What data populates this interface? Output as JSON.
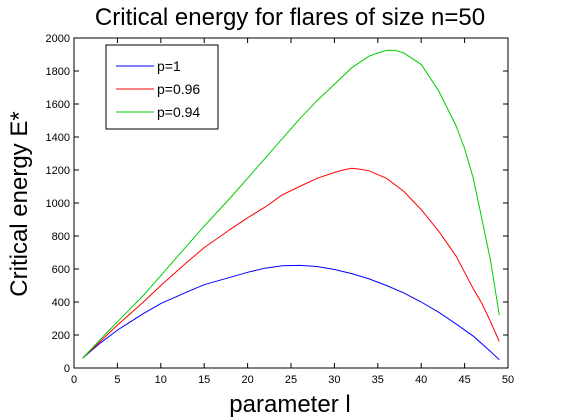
{
  "chart_data": {
    "type": "line",
    "title": "Critical energy for flares of size n=50",
    "xlabel": "parameter l",
    "ylabel": "Critical energy E*",
    "xlim": [
      0,
      50
    ],
    "ylim": [
      0,
      2000
    ],
    "xticks": [
      0,
      5,
      10,
      15,
      20,
      25,
      30,
      35,
      40,
      45,
      50
    ],
    "yticks": [
      0,
      200,
      400,
      600,
      800,
      1000,
      1200,
      1400,
      1600,
      1800,
      2000
    ],
    "grid": false,
    "legend_position": "top-left",
    "series": [
      {
        "name": "p=1",
        "color": "#0000ff",
        "x": [
          1,
          3,
          5,
          8,
          10,
          13,
          15,
          18,
          20,
          22,
          24,
          26,
          28,
          30,
          32,
          34,
          36,
          38,
          40,
          42,
          44,
          46,
          48,
          49
        ],
        "y": [
          60,
          150,
          230,
          330,
          390,
          460,
          505,
          550,
          580,
          605,
          620,
          622,
          615,
          597,
          572,
          540,
          500,
          455,
          400,
          338,
          268,
          193,
          100,
          50
        ]
      },
      {
        "name": "p=0.96",
        "color": "#ff0000",
        "x": [
          1,
          3,
          5,
          8,
          10,
          13,
          15,
          18,
          20,
          22,
          24,
          26,
          28,
          30,
          31,
          32,
          33,
          34,
          36,
          38,
          40,
          42,
          44,
          46,
          47,
          48,
          49
        ],
        "y": [
          60,
          160,
          260,
          400,
          500,
          640,
          730,
          840,
          910,
          975,
          1050,
          1100,
          1150,
          1185,
          1200,
          1210,
          1205,
          1195,
          1150,
          1070,
          960,
          830,
          680,
          480,
          390,
          280,
          160
        ]
      },
      {
        "name": "p=0.94",
        "color": "#00cc00",
        "x": [
          1,
          3,
          5,
          8,
          10,
          13,
          15,
          18,
          20,
          22,
          24,
          26,
          28,
          30,
          32,
          34,
          35,
          36,
          37,
          38,
          40,
          42,
          44,
          45,
          46,
          47,
          48,
          49
        ],
        "y": [
          60,
          170,
          280,
          440,
          560,
          740,
          860,
          1030,
          1150,
          1270,
          1390,
          1510,
          1620,
          1720,
          1820,
          1890,
          1910,
          1925,
          1925,
          1910,
          1840,
          1680,
          1470,
          1330,
          1150,
          900,
          650,
          320
        ]
      }
    ]
  }
}
